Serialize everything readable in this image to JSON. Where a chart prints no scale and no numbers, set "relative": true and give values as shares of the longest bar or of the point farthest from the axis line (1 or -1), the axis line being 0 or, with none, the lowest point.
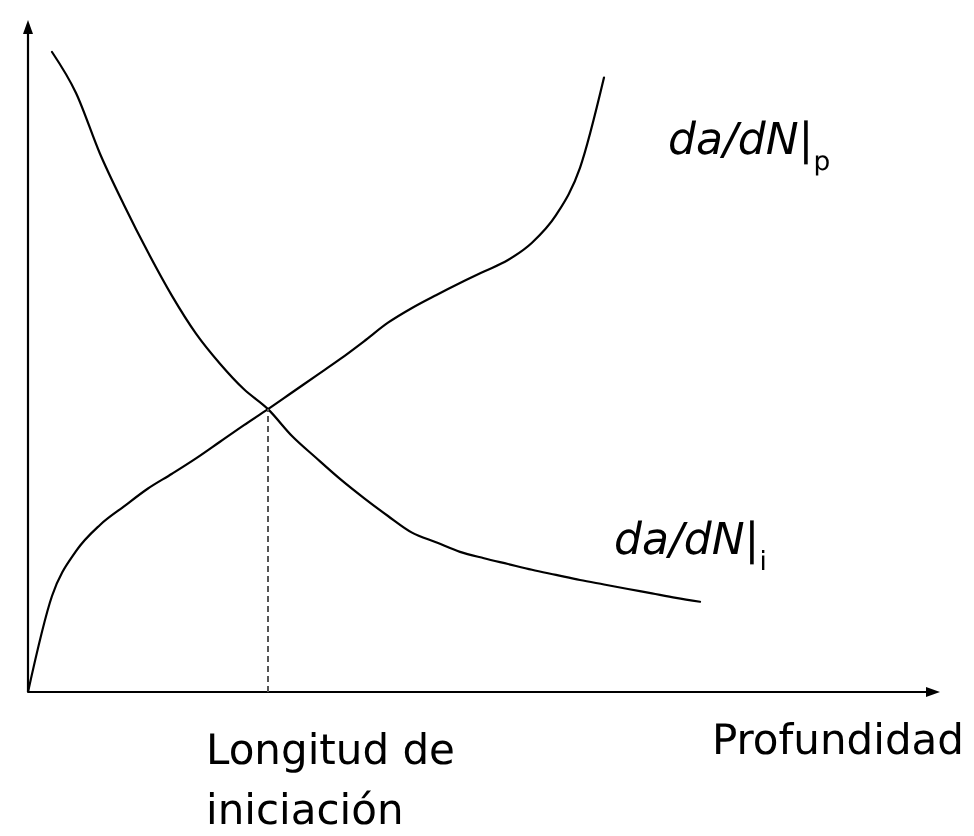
{
  "chart_data": {
    "type": "line",
    "relative": true,
    "xlabel": "Profundidad",
    "categories": [
      null,
      null,
      null,
      null,
      null,
      null,
      null,
      null,
      null,
      null,
      null,
      null,
      null,
      null,
      null,
      null,
      null,
      null,
      null,
      null,
      null,
      null,
      null,
      null,
      null,
      null,
      null,
      null,
      null,
      null,
      null,
      null,
      null,
      null,
      null,
      null,
      null,
      null
    ],
    "series": [
      {
        "name": "da/dN|$_{p}$",
        "color": "#000000",
        "values": [
          0,
          0.15,
          0.22,
          0.261,
          0.29,
          0.318,
          0.341,
          0.365,
          0.391,
          0.417,
          0.442,
          0.468,
          0.494,
          0.52,
          0.548,
          0.577,
          0.6,
          0.62,
          0.639,
          0.657,
          0.675,
          0.702,
          0.745,
          0.819,
          0.96,
          null,
          null,
          null,
          null,
          null,
          null,
          null,
          null,
          null,
          null,
          null,
          null,
          null
        ]
      },
      {
        "name": "da/dN|$_{i}$",
        "color": "#000000",
        "values": [
          null,
          1,
          0.936,
          0.841,
          0.761,
          0.687,
          0.619,
          0.56,
          0.513,
          0.473,
          0.442,
          0.4,
          0.366,
          0.333,
          0.303,
          0.275,
          0.249,
          0.234,
          0.219,
          0.209,
          0.2,
          0.191,
          0.183,
          0.175,
          0.168,
          0.161,
          0.154,
          0.147,
          0.141,
          null,
          null,
          null,
          null,
          null,
          null,
          null,
          null,
          null
        ]
      }
    ],
    "annotations": [
      "Longitud de iniciación"
    ]
  }
}
